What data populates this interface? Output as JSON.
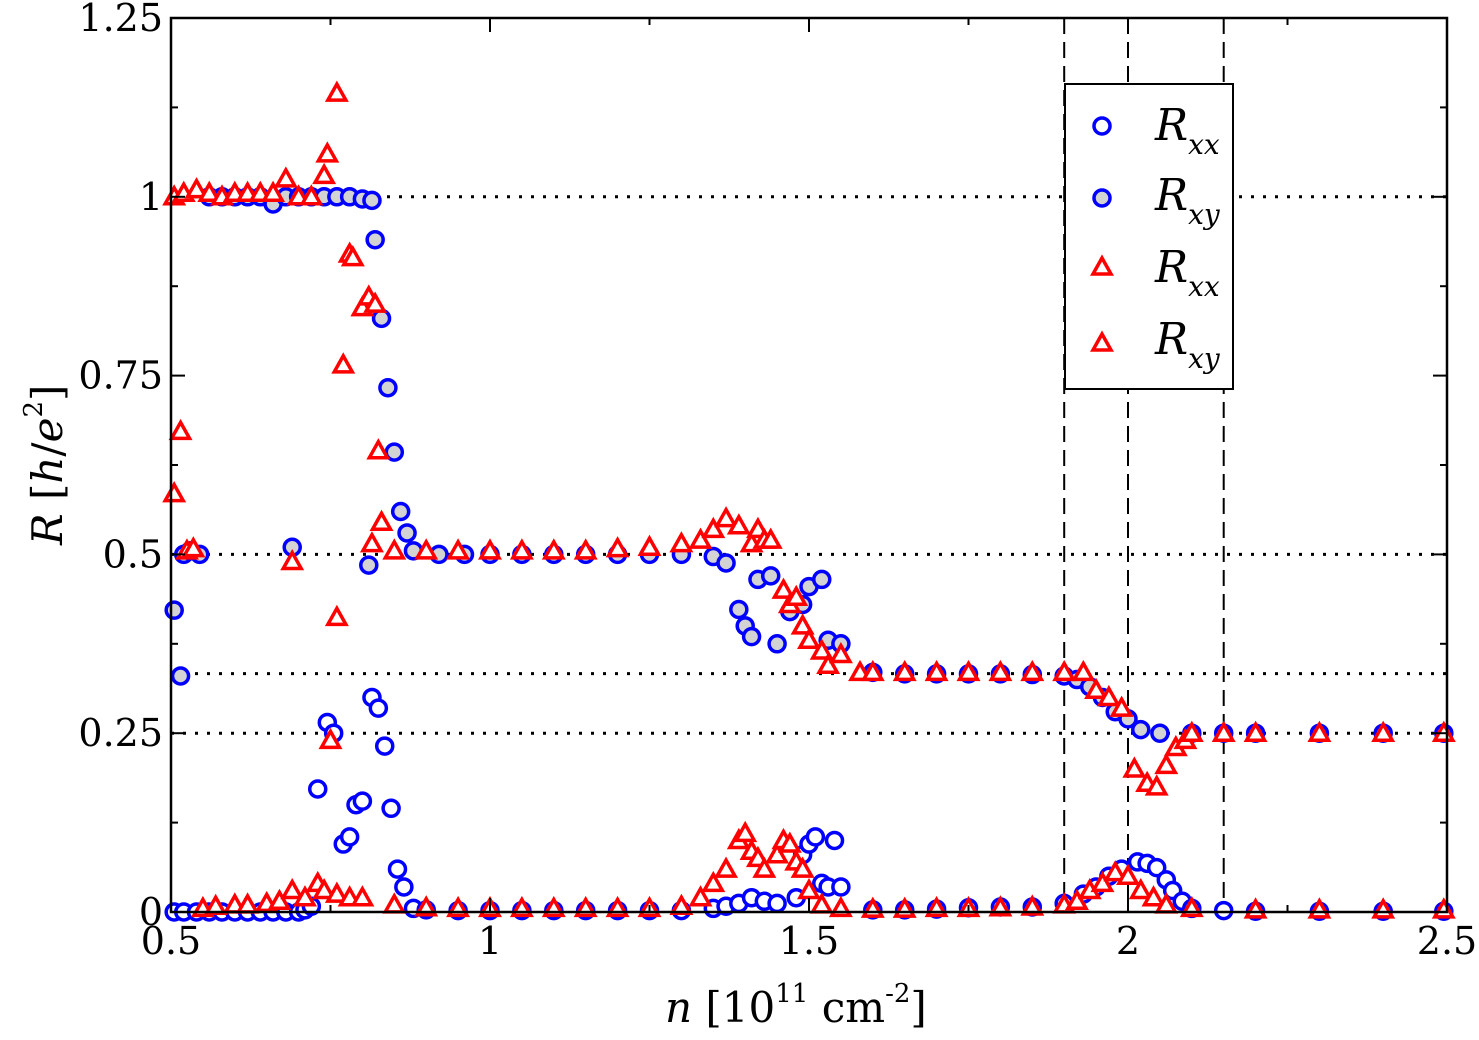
{
  "chart_data": {
    "type": "scatter",
    "title": "",
    "xlabel": {
      "var": "n",
      "text": "[10",
      "exp": "11",
      "unit": "cm",
      "unit_exp": "-2",
      "close": "]"
    },
    "ylabel": {
      "var": "R",
      "text": "[",
      "num": "h",
      "slash": "/",
      "den": "e",
      "exp": "2",
      "close": "]"
    },
    "xlim": [
      0.5,
      2.5
    ],
    "ylim": [
      0,
      1.25
    ],
    "x_ticks": [
      0.5,
      1,
      1.5,
      2,
      2.5
    ],
    "x_tick_labels": [
      "0.5",
      "1",
      "1.5",
      "2",
      "2.5"
    ],
    "y_ticks": [
      0,
      0.25,
      0.5,
      0.75,
      1,
      1.25
    ],
    "y_tick_labels": [
      "0",
      "0.25",
      "0.5",
      "0.75",
      "1",
      "1.25"
    ],
    "reference_lines": {
      "horizontal_dotted": [
        1.0,
        0.5,
        0.3333,
        0.25
      ],
      "vertical_dashed": [
        1.9,
        2.0,
        2.15
      ]
    },
    "legend_position": "top-right",
    "legend": [
      {
        "main": "R",
        "sub": "xx",
        "marker": "circle",
        "stroke": "#0000ff",
        "fill": "#ffffff"
      },
      {
        "main": "R",
        "sub": "xy",
        "marker": "circle",
        "stroke": "#0000ff",
        "fill": "#d3d3d3"
      },
      {
        "main": "R",
        "sub": "xx",
        "marker": "triangle",
        "stroke": "#ff0000",
        "fill": "#ffffff"
      },
      {
        "main": "R",
        "sub": "xy",
        "marker": "triangle",
        "stroke": "#ff0000",
        "fill": "#ffffff"
      }
    ],
    "series": [
      {
        "name": "Rxx (circles, open)",
        "marker": "circle",
        "stroke": "#0000ff",
        "fill": "#ffffff",
        "points": [
          [
            0.505,
            0.0
          ],
          [
            0.52,
            0.0
          ],
          [
            0.54,
            0.0
          ],
          [
            0.56,
            0.0
          ],
          [
            0.58,
            0.0
          ],
          [
            0.6,
            0.0
          ],
          [
            0.62,
            0.0
          ],
          [
            0.64,
            0.0
          ],
          [
            0.66,
            0.0
          ],
          [
            0.68,
            0.0
          ],
          [
            0.7,
            0.0
          ],
          [
            0.71,
            0.003
          ],
          [
            0.72,
            0.008
          ],
          [
            0.73,
            0.172
          ],
          [
            0.745,
            0.265
          ],
          [
            0.755,
            0.25
          ],
          [
            0.77,
            0.095
          ],
          [
            0.78,
            0.105
          ],
          [
            0.79,
            0.15
          ],
          [
            0.8,
            0.155
          ],
          [
            0.815,
            0.3
          ],
          [
            0.825,
            0.285
          ],
          [
            0.835,
            0.232
          ],
          [
            0.845,
            0.145
          ],
          [
            0.855,
            0.06
          ],
          [
            0.865,
            0.035
          ],
          [
            0.88,
            0.005
          ],
          [
            0.9,
            0.003
          ],
          [
            0.95,
            0.002
          ],
          [
            1.0,
            0.002
          ],
          [
            1.05,
            0.002
          ],
          [
            1.1,
            0.002
          ],
          [
            1.15,
            0.002
          ],
          [
            1.2,
            0.002
          ],
          [
            1.25,
            0.002
          ],
          [
            1.3,
            0.002
          ],
          [
            1.35,
            0.005
          ],
          [
            1.37,
            0.008
          ],
          [
            1.39,
            0.012
          ],
          [
            1.41,
            0.02
          ],
          [
            1.43,
            0.015
          ],
          [
            1.45,
            0.012
          ],
          [
            1.48,
            0.02
          ],
          [
            1.49,
            0.08
          ],
          [
            1.5,
            0.095
          ],
          [
            1.51,
            0.105
          ],
          [
            1.52,
            0.04
          ],
          [
            1.53,
            0.035
          ],
          [
            1.54,
            0.1
          ],
          [
            1.55,
            0.035
          ],
          [
            1.6,
            0.003
          ],
          [
            1.65,
            0.003
          ],
          [
            1.7,
            0.004
          ],
          [
            1.75,
            0.006
          ],
          [
            1.8,
            0.007
          ],
          [
            1.85,
            0.007
          ],
          [
            1.9,
            0.012
          ],
          [
            1.93,
            0.025
          ],
          [
            1.95,
            0.035
          ],
          [
            1.97,
            0.05
          ],
          [
            1.99,
            0.06
          ],
          [
            2.015,
            0.07
          ],
          [
            2.03,
            0.068
          ],
          [
            2.045,
            0.062
          ],
          [
            2.06,
            0.045
          ],
          [
            2.07,
            0.03
          ],
          [
            2.085,
            0.015
          ],
          [
            2.1,
            0.005
          ],
          [
            2.15,
            0.002
          ],
          [
            2.2,
            0.001
          ],
          [
            2.3,
            0.001
          ],
          [
            2.4,
            0.001
          ],
          [
            2.495,
            0.001
          ]
        ]
      },
      {
        "name": "Rxy (circles, filled)",
        "marker": "circle",
        "stroke": "#0000ff",
        "fill": "#d3d3d3",
        "points": [
          [
            0.505,
            0.422
          ],
          [
            0.515,
            0.33
          ],
          [
            0.52,
            0.5
          ],
          [
            0.53,
            0.505
          ],
          [
            0.545,
            0.5
          ],
          [
            0.56,
            1.0
          ],
          [
            0.58,
            1.0
          ],
          [
            0.6,
            1.0
          ],
          [
            0.62,
            1.0
          ],
          [
            0.64,
            1.0
          ],
          [
            0.66,
            0.99
          ],
          [
            0.68,
            1.0
          ],
          [
            0.7,
            1.0
          ],
          [
            0.72,
            1.0
          ],
          [
            0.74,
            1.0
          ],
          [
            0.76,
            1.0
          ],
          [
            0.78,
            1.0
          ],
          [
            0.8,
            0.997
          ],
          [
            0.815,
            0.995
          ],
          [
            0.82,
            0.94
          ],
          [
            0.83,
            0.83
          ],
          [
            0.84,
            0.733
          ],
          [
            0.85,
            0.643
          ],
          [
            0.86,
            0.56
          ],
          [
            0.87,
            0.53
          ],
          [
            0.69,
            0.51
          ],
          [
            0.81,
            0.485
          ],
          [
            0.88,
            0.505
          ],
          [
            0.92,
            0.5
          ],
          [
            0.96,
            0.5
          ],
          [
            1.0,
            0.5
          ],
          [
            1.05,
            0.5
          ],
          [
            1.1,
            0.5
          ],
          [
            1.15,
            0.5
          ],
          [
            1.2,
            0.5
          ],
          [
            1.25,
            0.5
          ],
          [
            1.3,
            0.5
          ],
          [
            1.35,
            0.497
          ],
          [
            1.37,
            0.488
          ],
          [
            1.39,
            0.423
          ],
          [
            1.4,
            0.4
          ],
          [
            1.41,
            0.385
          ],
          [
            1.42,
            0.465
          ],
          [
            1.44,
            0.47
          ],
          [
            1.45,
            0.375
          ],
          [
            1.47,
            0.42
          ],
          [
            1.49,
            0.43
          ],
          [
            1.5,
            0.455
          ],
          [
            1.52,
            0.465
          ],
          [
            1.53,
            0.38
          ],
          [
            1.55,
            0.375
          ],
          [
            1.6,
            0.335
          ],
          [
            1.65,
            0.333
          ],
          [
            1.7,
            0.333
          ],
          [
            1.75,
            0.333
          ],
          [
            1.8,
            0.333
          ],
          [
            1.85,
            0.332
          ],
          [
            1.9,
            0.33
          ],
          [
            1.92,
            0.325
          ],
          [
            1.94,
            0.315
          ],
          [
            1.96,
            0.3
          ],
          [
            1.98,
            0.28
          ],
          [
            2.0,
            0.27
          ],
          [
            2.02,
            0.255
          ],
          [
            2.05,
            0.25
          ],
          [
            2.1,
            0.25
          ],
          [
            2.15,
            0.25
          ],
          [
            2.2,
            0.25
          ],
          [
            2.3,
            0.25
          ],
          [
            2.4,
            0.25
          ],
          [
            2.495,
            0.25
          ]
        ]
      },
      {
        "name": "Rxx (triangles, low branch)",
        "marker": "triangle",
        "stroke": "#ff0000",
        "fill": "#ffffff",
        "points": [
          [
            0.55,
            0.005
          ],
          [
            0.57,
            0.008
          ],
          [
            0.6,
            0.01
          ],
          [
            0.62,
            0.01
          ],
          [
            0.65,
            0.012
          ],
          [
            0.67,
            0.015
          ],
          [
            0.69,
            0.03
          ],
          [
            0.71,
            0.02
          ],
          [
            0.73,
            0.04
          ],
          [
            0.74,
            0.03
          ],
          [
            0.76,
            0.025
          ],
          [
            0.78,
            0.02
          ],
          [
            0.8,
            0.02
          ],
          [
            0.85,
            0.01
          ],
          [
            0.9,
            0.006
          ],
          [
            0.95,
            0.005
          ],
          [
            1.0,
            0.005
          ],
          [
            1.05,
            0.005
          ],
          [
            1.1,
            0.005
          ],
          [
            1.15,
            0.005
          ],
          [
            1.2,
            0.005
          ],
          [
            1.25,
            0.005
          ],
          [
            1.3,
            0.008
          ],
          [
            1.33,
            0.02
          ],
          [
            1.35,
            0.04
          ],
          [
            1.37,
            0.06
          ],
          [
            1.39,
            0.1
          ],
          [
            1.4,
            0.11
          ],
          [
            1.41,
            0.085
          ],
          [
            1.42,
            0.075
          ],
          [
            1.43,
            0.06
          ],
          [
            1.45,
            0.08
          ],
          [
            1.46,
            0.1
          ],
          [
            1.47,
            0.095
          ],
          [
            1.48,
            0.07
          ],
          [
            1.49,
            0.06
          ],
          [
            1.5,
            0.03
          ],
          [
            1.52,
            0.01
          ],
          [
            1.55,
            0.005
          ],
          [
            1.6,
            0.004
          ],
          [
            1.65,
            0.004
          ],
          [
            1.7,
            0.005
          ],
          [
            1.75,
            0.005
          ],
          [
            1.8,
            0.006
          ],
          [
            1.85,
            0.007
          ],
          [
            1.9,
            0.01
          ],
          [
            1.92,
            0.015
          ],
          [
            1.94,
            0.03
          ],
          [
            1.96,
            0.04
          ],
          [
            1.98,
            0.055
          ],
          [
            2.0,
            0.05
          ],
          [
            2.02,
            0.03
          ],
          [
            2.04,
            0.02
          ],
          [
            2.06,
            0.01
          ],
          [
            2.1,
            0.005
          ],
          [
            2.2,
            0.003
          ],
          [
            2.3,
            0.003
          ],
          [
            2.4,
            0.003
          ],
          [
            2.495,
            0.003
          ]
        ]
      },
      {
        "name": "Rxy (triangles, plateau branch)",
        "marker": "triangle",
        "stroke": "#ff0000",
        "fill": "#ffffff",
        "points": [
          [
            0.505,
            0.585
          ],
          [
            0.515,
            0.672
          ],
          [
            0.525,
            0.505
          ],
          [
            0.535,
            0.508
          ],
          [
            0.505,
            1.0
          ],
          [
            0.52,
            1.005
          ],
          [
            0.54,
            1.01
          ],
          [
            0.56,
            1.005
          ],
          [
            0.58,
            1.0
          ],
          [
            0.6,
            1.005
          ],
          [
            0.62,
            1.005
          ],
          [
            0.64,
            1.005
          ],
          [
            0.66,
            1.005
          ],
          [
            0.68,
            1.025
          ],
          [
            0.7,
            1.0
          ],
          [
            0.72,
            1.0
          ],
          [
            0.74,
            1.03
          ],
          [
            0.745,
            1.06
          ],
          [
            0.76,
            1.145
          ],
          [
            0.77,
            0.765
          ],
          [
            0.78,
            0.92
          ],
          [
            0.785,
            0.915
          ],
          [
            0.8,
            0.845
          ],
          [
            0.81,
            0.86
          ],
          [
            0.82,
            0.85
          ],
          [
            0.75,
            0.24
          ],
          [
            0.76,
            0.412
          ],
          [
            0.69,
            0.49
          ],
          [
            0.815,
            0.515
          ],
          [
            0.825,
            0.645
          ],
          [
            0.83,
            0.545
          ],
          [
            0.85,
            0.505
          ],
          [
            0.9,
            0.505
          ],
          [
            0.95,
            0.505
          ],
          [
            1.0,
            0.505
          ],
          [
            1.05,
            0.505
          ],
          [
            1.1,
            0.505
          ],
          [
            1.15,
            0.505
          ],
          [
            1.2,
            0.508
          ],
          [
            1.25,
            0.51
          ],
          [
            1.3,
            0.515
          ],
          [
            1.33,
            0.52
          ],
          [
            1.35,
            0.535
          ],
          [
            1.37,
            0.55
          ],
          [
            1.39,
            0.54
          ],
          [
            1.41,
            0.515
          ],
          [
            1.42,
            0.535
          ],
          [
            1.43,
            0.52
          ],
          [
            1.44,
            0.52
          ],
          [
            1.46,
            0.45
          ],
          [
            1.47,
            0.43
          ],
          [
            1.48,
            0.44
          ],
          [
            1.49,
            0.4
          ],
          [
            1.5,
            0.38
          ],
          [
            1.52,
            0.365
          ],
          [
            1.53,
            0.345
          ],
          [
            1.55,
            0.36
          ],
          [
            1.58,
            0.335
          ],
          [
            1.6,
            0.335
          ],
          [
            1.65,
            0.335
          ],
          [
            1.7,
            0.335
          ],
          [
            1.75,
            0.335
          ],
          [
            1.8,
            0.335
          ],
          [
            1.85,
            0.335
          ],
          [
            1.9,
            0.335
          ],
          [
            1.93,
            0.335
          ],
          [
            1.95,
            0.31
          ],
          [
            1.97,
            0.3
          ],
          [
            1.99,
            0.285
          ],
          [
            2.01,
            0.2
          ],
          [
            2.03,
            0.18
          ],
          [
            2.045,
            0.175
          ],
          [
            2.06,
            0.205
          ],
          [
            2.075,
            0.23
          ],
          [
            2.09,
            0.24
          ],
          [
            2.1,
            0.25
          ],
          [
            2.15,
            0.25
          ],
          [
            2.2,
            0.25
          ],
          [
            2.3,
            0.25
          ],
          [
            2.4,
            0.25
          ],
          [
            2.495,
            0.25
          ]
        ]
      }
    ]
  }
}
